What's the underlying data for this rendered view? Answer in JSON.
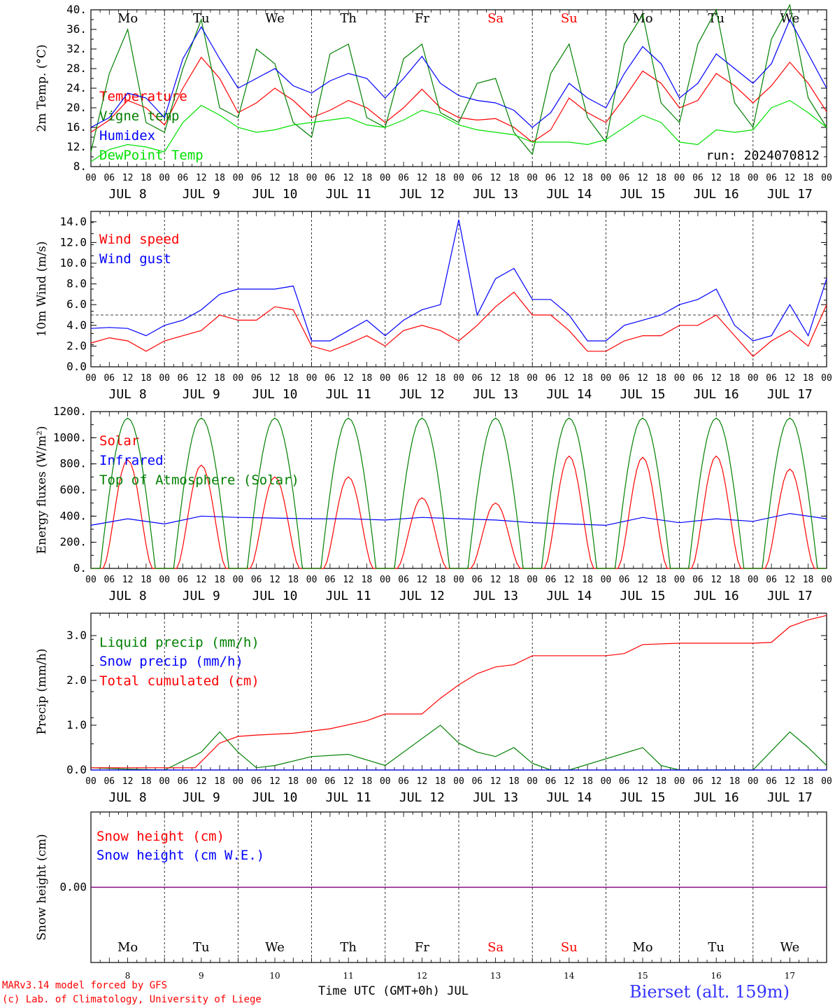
{
  "run_label": "run: 2024070812",
  "footer": {
    "credit_line1": "MARv3.14 model forced by GFS",
    "credit_line2": "(c) Lab. of Climatology, University of Liege",
    "xlabel": "Time UTC (GMT+0h) JUL",
    "station": "Bierset (alt. 159m)"
  },
  "days": [
    {
      "abbr": "Mo",
      "date": "JUL  8",
      "num": "8",
      "weekend": false
    },
    {
      "abbr": "Tu",
      "date": "JUL  9",
      "num": "9",
      "weekend": false
    },
    {
      "abbr": "We",
      "date": "JUL 10",
      "num": "10",
      "weekend": false
    },
    {
      "abbr": "Th",
      "date": "JUL 11",
      "num": "11",
      "weekend": false
    },
    {
      "abbr": "Fr",
      "date": "JUL 12",
      "num": "12",
      "weekend": false
    },
    {
      "abbr": "Sa",
      "date": "JUL 13",
      "num": "13",
      "weekend": true
    },
    {
      "abbr": "Su",
      "date": "JUL 14",
      "num": "14",
      "weekend": true
    },
    {
      "abbr": "Mo",
      "date": "JUL 15",
      "num": "15",
      "weekend": false
    },
    {
      "abbr": "Tu",
      "date": "JUL 16",
      "num": "16",
      "weekend": false
    },
    {
      "abbr": "We",
      "date": "JUL 17",
      "num": "17",
      "weekend": false
    }
  ],
  "hour_ticks": [
    "00",
    "06",
    "12",
    "18"
  ],
  "colors": {
    "red": "#ff0000",
    "blue": "#0000ff",
    "green": "#008000",
    "lightgreen": "#00e000",
    "purple": "#800080",
    "station": "#3333ff",
    "weekend": "#ff0000"
  },
  "chart_data": [
    {
      "type": "line",
      "id": "temp",
      "ylabel": "2m Temp. (°C)",
      "ylim": [
        8,
        40
      ],
      "yticks": [
        "8.",
        "12.",
        "16.",
        "20.",
        "24.",
        "28.",
        "32.",
        "36.",
        "40."
      ],
      "x_unit": "hours since JUL 8 00 UTC",
      "series": [
        {
          "name": "Temperature",
          "color": "red",
          "x": [
            0,
            6,
            12,
            18,
            24,
            30,
            36,
            42,
            48,
            54,
            60,
            66,
            72,
            78,
            84,
            90,
            96,
            102,
            108,
            114,
            120,
            126,
            132,
            138,
            144,
            150,
            156,
            162,
            168,
            174,
            180,
            186,
            192,
            198,
            204,
            210,
            216,
            222,
            228,
            234,
            240
          ],
          "y": [
            15,
            17.5,
            21.5,
            20,
            16.5,
            24,
            30.3,
            26,
            19,
            21,
            24,
            21.5,
            18,
            19.5,
            21.5,
            20,
            17,
            20,
            23.8,
            20,
            18,
            17.5,
            17.8,
            16,
            13,
            15.5,
            22,
            19,
            17,
            22,
            27.5,
            25,
            20,
            21.5,
            27,
            24.5,
            21,
            24.5,
            29.3,
            25,
            19.2
          ]
        },
        {
          "name": "Vigne temp",
          "color": "green",
          "x": [
            0,
            6,
            12,
            18,
            24,
            30,
            36,
            42,
            48,
            54,
            60,
            66,
            72,
            78,
            84,
            90,
            96,
            102,
            108,
            114,
            120,
            126,
            132,
            138,
            144,
            150,
            156,
            162,
            168,
            174,
            180,
            186,
            192,
            198,
            204,
            210,
            216,
            222,
            228,
            234,
            240
          ],
          "y": [
            11,
            27,
            36,
            17,
            15,
            28,
            38,
            20,
            18,
            32,
            29,
            17,
            14,
            31,
            33,
            18,
            16,
            30,
            33,
            19,
            17,
            25,
            26,
            15,
            10.5,
            27,
            33,
            18,
            13,
            33,
            39,
            21,
            17,
            33,
            40,
            21,
            16,
            34,
            41,
            22,
            16
          ]
        },
        {
          "name": "Humidex",
          "color": "blue",
          "x": [
            0,
            6,
            12,
            18,
            24,
            30,
            36,
            42,
            48,
            54,
            60,
            66,
            72,
            78,
            84,
            90,
            96,
            102,
            108,
            114,
            120,
            126,
            132,
            138,
            144,
            150,
            156,
            162,
            168,
            174,
            180,
            186,
            192,
            198,
            204,
            210,
            216,
            222,
            228,
            234,
            240
          ],
          "y": [
            16,
            18,
            23,
            22,
            18,
            30,
            36.5,
            30,
            24,
            26,
            28,
            24.5,
            23,
            25.5,
            27,
            26,
            22,
            26,
            30.5,
            25,
            22.5,
            21.5,
            21,
            19.5,
            16,
            19,
            25,
            22,
            20,
            27,
            32.5,
            29,
            22,
            25,
            31,
            28,
            25,
            29,
            38,
            31,
            24
          ]
        },
        {
          "name": "DewPoint Temp",
          "color": "lightgreen",
          "x": [
            0,
            6,
            12,
            18,
            24,
            30,
            36,
            42,
            48,
            54,
            60,
            66,
            72,
            78,
            84,
            90,
            96,
            102,
            108,
            114,
            120,
            126,
            132,
            138,
            144,
            150,
            156,
            162,
            168,
            174,
            180,
            186,
            192,
            198,
            204,
            210,
            216,
            222,
            228,
            234,
            240
          ],
          "y": [
            9,
            11.5,
            12.5,
            12,
            11,
            17,
            20.5,
            18.5,
            16,
            15,
            15.5,
            16.5,
            17,
            17.5,
            18,
            16.5,
            16,
            17.5,
            19.5,
            18.5,
            16.5,
            15.5,
            15,
            14.5,
            13,
            13,
            13,
            12.5,
            13.5,
            16,
            18.5,
            17,
            13,
            12.5,
            15.5,
            15,
            15.5,
            20,
            21.5,
            19,
            16
          ]
        }
      ]
    },
    {
      "type": "line",
      "id": "wind",
      "ylabel": "10m Wind (m/s)",
      "ylim": [
        0,
        15
      ],
      "reference_line": 5,
      "yticks": [
        "0.0",
        "2.0",
        "4.0",
        "6.0",
        "8.0",
        "10.0",
        "12.0",
        "14.0"
      ],
      "series": [
        {
          "name": "Wind speed",
          "color": "red",
          "x": [
            0,
            6,
            12,
            18,
            24,
            30,
            36,
            42,
            48,
            54,
            60,
            66,
            72,
            78,
            84,
            90,
            96,
            102,
            108,
            114,
            120,
            126,
            132,
            138,
            144,
            150,
            156,
            162,
            168,
            174,
            180,
            186,
            192,
            198,
            204,
            210,
            216,
            222,
            228,
            234,
            240
          ],
          "y": [
            2.3,
            2.8,
            2.5,
            1.5,
            2.5,
            3,
            3.5,
            5,
            4.5,
            4.5,
            5.8,
            5.5,
            2,
            1.5,
            2.2,
            3,
            2,
            3.5,
            4,
            3.5,
            2.5,
            4,
            5.8,
            7.2,
            5,
            5,
            3.5,
            1.5,
            1.5,
            2.5,
            3,
            3,
            4,
            4,
            5,
            3,
            1,
            2.5,
            3.5,
            2,
            6
          ]
        },
        {
          "name": "Wind gust",
          "color": "blue",
          "x": [
            0,
            6,
            12,
            18,
            24,
            30,
            36,
            42,
            48,
            54,
            60,
            66,
            72,
            78,
            84,
            90,
            96,
            102,
            108,
            114,
            120,
            126,
            132,
            138,
            144,
            150,
            156,
            162,
            168,
            174,
            180,
            186,
            192,
            198,
            204,
            210,
            216,
            222,
            228,
            234,
            240
          ],
          "y": [
            3.7,
            3.8,
            3.7,
            3,
            4,
            4.5,
            5.5,
            7,
            7.5,
            7.5,
            7.5,
            7.8,
            2.5,
            2.5,
            3.5,
            4.5,
            3,
            4.5,
            5.5,
            6,
            14.2,
            5,
            8.5,
            9.5,
            6.5,
            6.5,
            5,
            2.5,
            2.5,
            4,
            4.5,
            5,
            6,
            6.5,
            7.5,
            4,
            2.5,
            3,
            6,
            3,
            8.5
          ]
        }
      ]
    },
    {
      "type": "line",
      "id": "flux",
      "ylabel": "Energy fluxes (W/m²)",
      "ylim": [
        0,
        1200
      ],
      "yticks": [
        "0.",
        "200.",
        "400.",
        "600.",
        "800.",
        "1000.",
        "1200."
      ],
      "series": [
        {
          "name": "Solar",
          "color": "red",
          "daily_peaks": [
            830,
            790,
            700,
            700,
            540,
            500,
            860,
            850,
            860,
            760
          ]
        },
        {
          "name": "Infrared",
          "color": "blue",
          "x": [
            0,
            12,
            24,
            36,
            48,
            60,
            72,
            84,
            96,
            108,
            120,
            132,
            144,
            156,
            168,
            180,
            192,
            204,
            216,
            228,
            240
          ],
          "y": [
            330,
            380,
            340,
            400,
            390,
            385,
            380,
            380,
            370,
            390,
            380,
            370,
            350,
            340,
            330,
            390,
            350,
            380,
            360,
            420,
            380
          ]
        },
        {
          "name": "Top of Atmosphere (Solar)",
          "color": "green",
          "daily_peak": 1150
        }
      ]
    },
    {
      "type": "line",
      "id": "precip",
      "ylabel": "Precip (mm/h)",
      "ylim": [
        0,
        3.5
      ],
      "yticks": [
        "0.0",
        "1.0",
        "2.0",
        "3.0"
      ],
      "series": [
        {
          "name": "Liquid precip (mm/h)",
          "color": "green",
          "x": [
            0,
            12,
            24,
            36,
            42,
            48,
            54,
            60,
            72,
            84,
            96,
            108,
            114,
            120,
            126,
            132,
            138,
            144,
            150,
            156,
            180,
            186,
            192,
            216,
            228,
            234,
            240
          ],
          "y": [
            0.05,
            0.02,
            0,
            0.4,
            0.85,
            0.4,
            0.05,
            0.1,
            0.3,
            0.35,
            0.1,
            0.7,
            1.0,
            0.6,
            0.4,
            0.3,
            0.5,
            0.15,
            0,
            0,
            0.5,
            0.1,
            0,
            0,
            0.85,
            0.5,
            0.1
          ]
        },
        {
          "name": "Snow precip (mm/h)",
          "color": "blue",
          "x": [
            0,
            240
          ],
          "y": [
            0,
            0
          ]
        },
        {
          "name": "Total cumulated (cm)",
          "color": "red",
          "x": [
            0,
            12,
            24,
            34,
            42,
            48,
            54,
            66,
            78,
            90,
            96,
            108,
            114,
            120,
            126,
            132,
            138,
            144,
            156,
            168,
            174,
            180,
            192,
            216,
            222,
            228,
            234,
            240
          ],
          "y": [
            0.05,
            0.05,
            0.05,
            0.05,
            0.6,
            0.75,
            0.78,
            0.82,
            0.92,
            1.1,
            1.25,
            1.25,
            1.6,
            1.9,
            2.15,
            2.3,
            2.35,
            2.55,
            2.55,
            2.55,
            2.6,
            2.8,
            2.83,
            2.83,
            2.85,
            3.2,
            3.35,
            3.45
          ]
        }
      ]
    },
    {
      "type": "line",
      "id": "snow",
      "ylabel": "Snow height (cm)",
      "yticks": [
        "0.00"
      ],
      "series": [
        {
          "name": "Snow height (cm)",
          "color": "red",
          "x": [
            0,
            240
          ],
          "y": [
            0,
            0
          ]
        },
        {
          "name": "Snow height (cm W.E.)",
          "color": "blue",
          "x": [
            0,
            240
          ],
          "y": [
            0,
            0
          ]
        }
      ]
    }
  ]
}
